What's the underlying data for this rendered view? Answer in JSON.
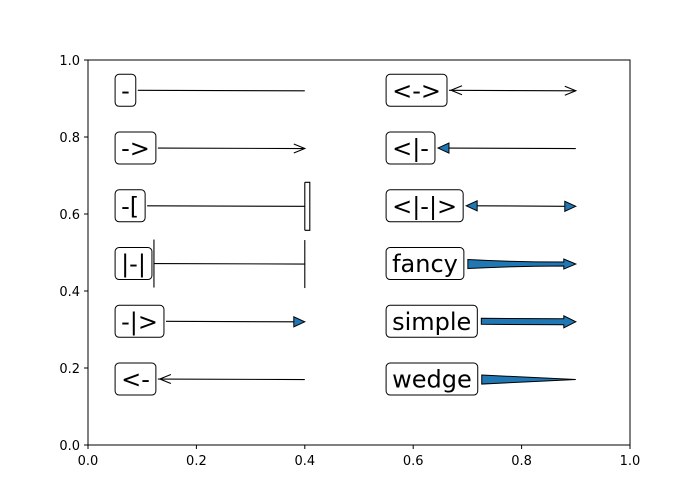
{
  "chart_data": {
    "type": "annotation",
    "xlim": [
      0.0,
      1.0
    ],
    "ylim": [
      0.0,
      1.0
    ],
    "x_ticks": [
      "0.0",
      "0.2",
      "0.4",
      "0.6",
      "0.8",
      "1.0"
    ],
    "y_ticks": [
      "0.0",
      "0.2",
      "0.4",
      "0.6",
      "0.8",
      "1.0"
    ],
    "grid": false,
    "arrow_color": "#1f77b4",
    "arrows": [
      {
        "label": "-",
        "text_x": 0.05,
        "y": 0.92,
        "tip_x": 0.4,
        "style": "-"
      },
      {
        "label": "->",
        "text_x": 0.05,
        "y": 0.77,
        "tip_x": 0.4,
        "style": "->"
      },
      {
        "label": "-[",
        "text_x": 0.05,
        "y": 0.62,
        "tip_x": 0.4,
        "style": "-["
      },
      {
        "label": "|-|",
        "text_x": 0.05,
        "y": 0.47,
        "tip_x": 0.4,
        "style": "|-|"
      },
      {
        "label": "-|>",
        "text_x": 0.05,
        "y": 0.32,
        "tip_x": 0.4,
        "style": "-|>"
      },
      {
        "label": "<-",
        "text_x": 0.05,
        "y": 0.17,
        "tip_x": 0.4,
        "style": "<-"
      },
      {
        "label": "<->",
        "text_x": 0.55,
        "y": 0.92,
        "tip_x": 0.9,
        "style": "<->"
      },
      {
        "label": "<|-",
        "text_x": 0.55,
        "y": 0.77,
        "tip_x": 0.9,
        "style": "<|-"
      },
      {
        "label": "<|-|>",
        "text_x": 0.55,
        "y": 0.62,
        "tip_x": 0.9,
        "style": "<|-|>"
      },
      {
        "label": "fancy",
        "text_x": 0.55,
        "y": 0.47,
        "tip_x": 0.9,
        "style": "fancy"
      },
      {
        "label": "simple",
        "text_x": 0.55,
        "y": 0.32,
        "tip_x": 0.9,
        "style": "simple"
      },
      {
        "label": "wedge",
        "text_x": 0.55,
        "y": 0.17,
        "tip_x": 0.9,
        "style": "wedge"
      }
    ]
  }
}
